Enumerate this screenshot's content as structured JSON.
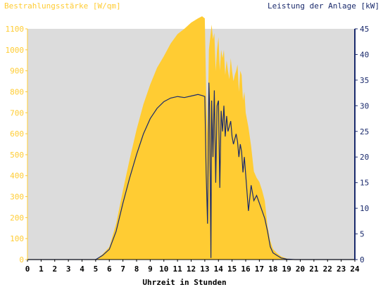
{
  "chart_data": {
    "type": "area",
    "title": "",
    "left_axis_label": "Bestrahlungsstärke [W/qm]",
    "right_axis_label": "Leistung der Anlage [kW]",
    "xlabel": "Uhrzeit in Stunden",
    "x_ticks": [
      "0",
      "1",
      "2",
      "3",
      "4",
      "5",
      "6",
      "7",
      "8",
      "9",
      "10",
      "11",
      "12",
      "13",
      "14",
      "15",
      "16",
      "17",
      "18",
      "19",
      "20",
      "21",
      "22",
      "23",
      "24"
    ],
    "y_left_ticks": [
      "0",
      "100",
      "200",
      "300",
      "400",
      "500",
      "600",
      "700",
      "800",
      "900",
      "1000",
      "1100"
    ],
    "y_right_ticks": [
      "0",
      "5",
      "10",
      "15",
      "20",
      "25",
      "30",
      "35",
      "40",
      "45"
    ],
    "x_range": [
      0,
      24
    ],
    "y_left_range": [
      0,
      1100
    ],
    "y_right_range": [
      0,
      45
    ],
    "grid": false,
    "colors": {
      "plot_bg": "#dcdcdc",
      "irradiance": "#ffcc33",
      "left_axis": "#ffcc33",
      "power": "#1a2a6c",
      "right_axis": "#1a2a6c",
      "axis_text": "#000000"
    },
    "series": [
      {
        "name": "Bestrahlungsstärke [W/qm]",
        "axis": "left",
        "x": [
          0,
          5.0,
          5.5,
          6.0,
          6.5,
          7.0,
          7.5,
          8.0,
          8.5,
          9.0,
          9.5,
          10.0,
          10.5,
          11.0,
          11.5,
          12.0,
          12.5,
          12.8,
          13.0,
          13.1,
          13.2,
          13.3,
          13.5,
          13.6,
          13.7,
          13.8,
          13.9,
          14.0,
          14.1,
          14.2,
          14.3,
          14.4,
          14.5,
          14.6,
          14.7,
          14.8,
          14.9,
          15.0,
          15.1,
          15.2,
          15.3,
          15.4,
          15.5,
          15.6,
          15.7,
          15.8,
          15.9,
          16.0,
          16.2,
          16.4,
          16.6,
          16.8,
          17.0,
          17.2,
          17.4,
          17.6,
          17.8,
          18.0,
          18.3,
          18.6,
          19.0,
          19.3,
          19.6,
          20.0,
          24
        ],
        "y": [
          0,
          0,
          25,
          60,
          170,
          330,
          480,
          620,
          740,
          835,
          915,
          970,
          1030,
          1075,
          1100,
          1130,
          1150,
          1160,
          1150,
          800,
          600,
          1000,
          1120,
          1050,
          1080,
          900,
          1000,
          1060,
          900,
          1000,
          960,
          1000,
          880,
          950,
          900,
          860,
          960,
          900,
          850,
          880,
          900,
          930,
          800,
          900,
          880,
          760,
          800,
          700,
          630,
          540,
          420,
          390,
          370,
          330,
          280,
          160,
          90,
          50,
          30,
          15,
          5,
          2,
          0,
          0,
          0
        ],
        "values_note": ""
      },
      {
        "name": "Leistung der Anlage [kW]",
        "axis": "right",
        "x": [
          0,
          5.0,
          5.5,
          6.0,
          6.5,
          7.0,
          7.5,
          8.0,
          8.5,
          9.0,
          9.5,
          10.0,
          10.5,
          11.0,
          11.5,
          12.0,
          12.5,
          12.8,
          13.0,
          13.1,
          13.2,
          13.3,
          13.35,
          13.45,
          13.5,
          13.6,
          13.7,
          13.8,
          13.9,
          14.0,
          14.1,
          14.2,
          14.3,
          14.4,
          14.5,
          14.6,
          14.7,
          14.8,
          14.9,
          15.0,
          15.1,
          15.2,
          15.3,
          15.4,
          15.5,
          15.6,
          15.7,
          15.8,
          15.9,
          16.0,
          16.2,
          16.4,
          16.6,
          16.8,
          17.0,
          17.2,
          17.4,
          17.6,
          17.8,
          18.0,
          18.3,
          18.6,
          19.0,
          19.3,
          19.6,
          20.0,
          24
        ],
        "y": [
          0,
          0,
          0.8,
          2.0,
          5.5,
          11.0,
          16.0,
          20.5,
          24.5,
          27.5,
          29.5,
          30.8,
          31.5,
          31.8,
          31.6,
          31.9,
          32.2,
          32.0,
          31.8,
          17.0,
          7.0,
          34.5,
          30.0,
          0.3,
          31.0,
          20.0,
          33.0,
          15.0,
          30.0,
          31.0,
          14.0,
          29.0,
          25.0,
          30.0,
          24.0,
          28.0,
          25.0,
          26.0,
          27.0,
          24.0,
          22.5,
          23.5,
          24.5,
          23.0,
          20.0,
          22.5,
          21.0,
          17.0,
          20.0,
          16.5,
          9.5,
          14.5,
          11.5,
          12.5,
          11.0,
          9.5,
          8.0,
          5.5,
          2.5,
          1.3,
          0.8,
          0.3,
          0.1,
          0.05,
          0,
          0,
          0
        ]
      }
    ]
  }
}
